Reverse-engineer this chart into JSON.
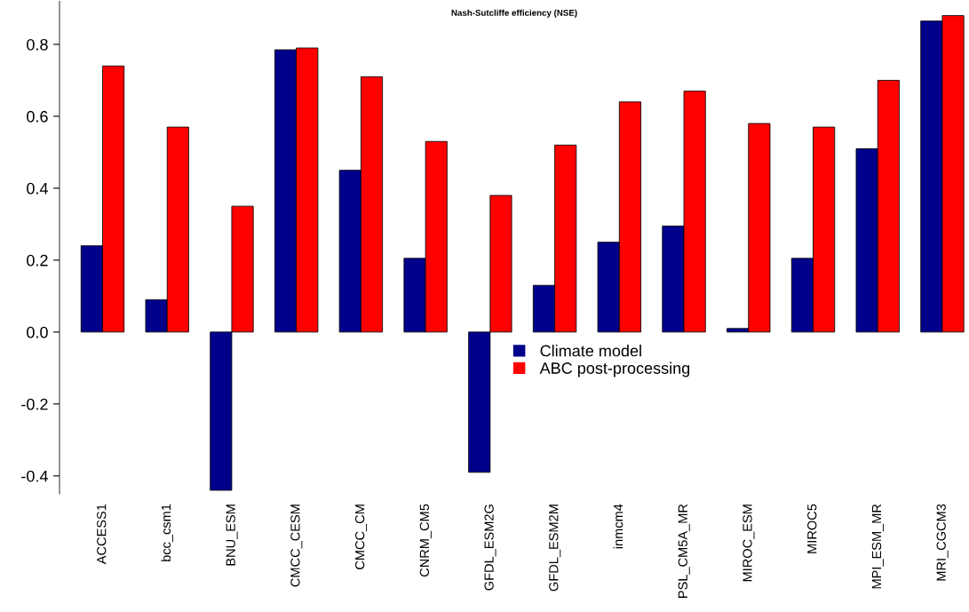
{
  "chart_data": {
    "type": "bar",
    "title": "Nash-Sutcliffe efficiency (NSE)",
    "categories": [
      "ACCESS1",
      "bcc_csm1",
      "BNU_ESM",
      "CMCC_CESM",
      "CMCC_CM",
      "CNRM_CM5",
      "GFDL_ESM2G",
      "GFDL_ESM2M",
      "inmcm4",
      "PSL_CM5A_MR",
      "MIROC_ESM",
      "MIROC5",
      "MPI_ESM_MR",
      "MRI_CGCM3"
    ],
    "series": [
      {
        "name": "Climate model",
        "color": "#00008b",
        "values": [
          0.24,
          0.09,
          -0.44,
          0.785,
          0.45,
          0.205,
          -0.39,
          0.13,
          0.25,
          0.295,
          0.01,
          0.205,
          0.51,
          0.865
        ]
      },
      {
        "name": "ABC post-processing",
        "color": "#ff0000",
        "values": [
          0.74,
          0.57,
          0.35,
          0.79,
          0.71,
          0.53,
          0.38,
          0.52,
          0.64,
          0.67,
          0.58,
          0.57,
          0.7,
          0.88
        ]
      }
    ],
    "ylim": [
      -0.45,
      0.92
    ],
    "yticks": [
      -0.4,
      -0.2,
      {
        "value": 0,
        "label": "0.0"
      },
      0.2,
      0.4,
      0.6,
      0.8
    ],
    "legend": "center"
  }
}
